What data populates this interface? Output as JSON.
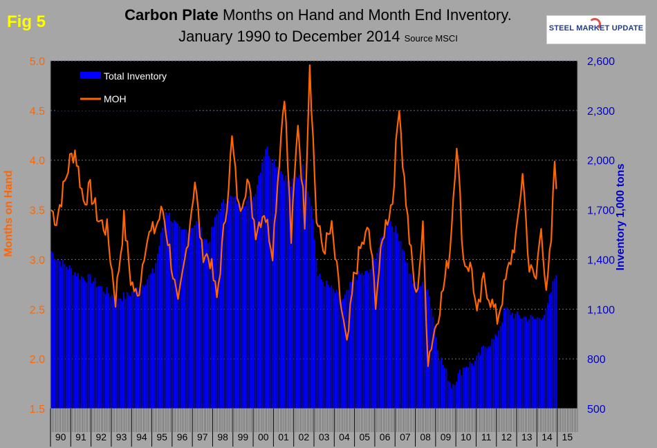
{
  "figure": {
    "label": "Fig 5",
    "title_bold": "Carbon Plate",
    "title_rest": " Months on Hand and Month End Inventory.",
    "title_line2": "January 1990 to December 2014",
    "source": "Source MSCI",
    "logo_text": "STEEL MARKET UPDATE"
  },
  "colors": {
    "inventory": "#0000ff",
    "moh": "#ff6600",
    "plot_bg": "#000000",
    "grid": "#6f6f9f"
  },
  "chart_data": {
    "type": "bar+line",
    "title": "Carbon Plate Months on Hand and Month End Inventory. January 1990 to December 2014",
    "ylabel_left": "Months on Hand",
    "ylabel_right": "Inventory 1,000 tons",
    "ylim_left": [
      1.5,
      5.0
    ],
    "ylim_right": [
      500,
      2600
    ],
    "yticks_left": [
      "1.5",
      "2.0",
      "2.5",
      "3.0",
      "3.5",
      "4.0",
      "4.5",
      "5.0"
    ],
    "yticks_right": [
      "500",
      "800",
      "1,100",
      "1,400",
      "1,700",
      "2,000",
      "2,300",
      "2,600"
    ],
    "x_labels": [
      "90",
      "91",
      "92",
      "93",
      "94",
      "95",
      "96",
      "97",
      "98",
      "99",
      "00",
      "01",
      "02",
      "03",
      "04",
      "05",
      "06",
      "07",
      "08",
      "09",
      "10",
      "11",
      "12",
      "13",
      "14",
      "15"
    ],
    "legend": [
      "Total Inventory",
      "MOH"
    ],
    "inventory_anchor_values": [
      {
        "year": 1990,
        "month": 1,
        "value": 1450
      },
      {
        "year": 1990,
        "month": 6,
        "value": 1390
      },
      {
        "year": 1991,
        "month": 1,
        "value": 1340
      },
      {
        "year": 1991,
        "month": 6,
        "value": 1300
      },
      {
        "year": 1992,
        "month": 1,
        "value": 1280
      },
      {
        "year": 1992,
        "month": 8,
        "value": 1220
      },
      {
        "year": 1993,
        "month": 3,
        "value": 1170
      },
      {
        "year": 1993,
        "month": 10,
        "value": 1180
      },
      {
        "year": 1994,
        "month": 6,
        "value": 1240
      },
      {
        "year": 1995,
        "month": 2,
        "value": 1330
      },
      {
        "year": 1995,
        "month": 9,
        "value": 1700
      },
      {
        "year": 1996,
        "month": 6,
        "value": 1560
      },
      {
        "year": 1997,
        "month": 3,
        "value": 1620
      },
      {
        "year": 1997,
        "month": 10,
        "value": 1500
      },
      {
        "year": 1998,
        "month": 4,
        "value": 1700
      },
      {
        "year": 1998,
        "month": 10,
        "value": 1780
      },
      {
        "year": 1999,
        "month": 6,
        "value": 1740
      },
      {
        "year": 2000,
        "month": 1,
        "value": 1780
      },
      {
        "year": 2000,
        "month": 8,
        "value": 2080
      },
      {
        "year": 2001,
        "month": 4,
        "value": 1950
      },
      {
        "year": 2001,
        "month": 11,
        "value": 1850
      },
      {
        "year": 2002,
        "month": 6,
        "value": 1950
      },
      {
        "year": 2002,
        "month": 11,
        "value": 1750
      },
      {
        "year": 2003,
        "month": 3,
        "value": 1300
      },
      {
        "year": 2003,
        "month": 10,
        "value": 1230
      },
      {
        "year": 2004,
        "month": 6,
        "value": 1150
      },
      {
        "year": 2005,
        "month": 1,
        "value": 1300
      },
      {
        "year": 2005,
        "month": 9,
        "value": 1320
      },
      {
        "year": 2006,
        "month": 4,
        "value": 1500
      },
      {
        "year": 2006,
        "month": 9,
        "value": 1650
      },
      {
        "year": 2007,
        "month": 4,
        "value": 1520
      },
      {
        "year": 2007,
        "month": 11,
        "value": 1250
      },
      {
        "year": 2008,
        "month": 8,
        "value": 1240
      },
      {
        "year": 2009,
        "month": 3,
        "value": 820
      },
      {
        "year": 2009,
        "month": 10,
        "value": 640
      },
      {
        "year": 2010,
        "month": 6,
        "value": 760
      },
      {
        "year": 2010,
        "month": 12,
        "value": 780
      },
      {
        "year": 2011,
        "month": 6,
        "value": 880
      },
      {
        "year": 2011,
        "month": 12,
        "value": 920
      },
      {
        "year": 2012,
        "month": 6,
        "value": 1100
      },
      {
        "year": 2012,
        "month": 12,
        "value": 1060
      },
      {
        "year": 2013,
        "month": 6,
        "value": 1050
      },
      {
        "year": 2013,
        "month": 12,
        "value": 1040
      },
      {
        "year": 2014,
        "month": 6,
        "value": 1080
      },
      {
        "year": 2014,
        "month": 12,
        "value": 1330
      }
    ],
    "moh_anchor_values": [
      {
        "year": 1990,
        "month": 1,
        "value": 3.5
      },
      {
        "year": 1990,
        "month": 4,
        "value": 3.4
      },
      {
        "year": 1990,
        "month": 8,
        "value": 3.7
      },
      {
        "year": 1990,
        "month": 12,
        "value": 4.0
      },
      {
        "year": 1991,
        "month": 3,
        "value": 4.1
      },
      {
        "year": 1991,
        "month": 8,
        "value": 3.6
      },
      {
        "year": 1991,
        "month": 12,
        "value": 3.7
      },
      {
        "year": 1992,
        "month": 5,
        "value": 3.4
      },
      {
        "year": 1992,
        "month": 10,
        "value": 3.3
      },
      {
        "year": 1993,
        "month": 3,
        "value": 2.6
      },
      {
        "year": 1993,
        "month": 8,
        "value": 3.4
      },
      {
        "year": 1993,
        "month": 12,
        "value": 2.8
      },
      {
        "year": 1994,
        "month": 4,
        "value": 2.6
      },
      {
        "year": 1994,
        "month": 9,
        "value": 3.2
      },
      {
        "year": 1995,
        "month": 2,
        "value": 3.3
      },
      {
        "year": 1995,
        "month": 7,
        "value": 3.5
      },
      {
        "year": 1995,
        "month": 11,
        "value": 3.1
      },
      {
        "year": 1996,
        "month": 4,
        "value": 2.5
      },
      {
        "year": 1996,
        "month": 9,
        "value": 3.1
      },
      {
        "year": 1997,
        "month": 2,
        "value": 3.8
      },
      {
        "year": 1997,
        "month": 6,
        "value": 3.1
      },
      {
        "year": 1997,
        "month": 11,
        "value": 3.0
      },
      {
        "year": 1998,
        "month": 3,
        "value": 2.6
      },
      {
        "year": 1998,
        "month": 9,
        "value": 3.6
      },
      {
        "year": 1998,
        "month": 12,
        "value": 4.2
      },
      {
        "year": 1999,
        "month": 4,
        "value": 3.5
      },
      {
        "year": 1999,
        "month": 9,
        "value": 3.8
      },
      {
        "year": 2000,
        "month": 2,
        "value": 3.3
      },
      {
        "year": 2000,
        "month": 7,
        "value": 3.5
      },
      {
        "year": 2000,
        "month": 12,
        "value": 3.1
      },
      {
        "year": 2001,
        "month": 3,
        "value": 3.8
      },
      {
        "year": 2001,
        "month": 7,
        "value": 4.7
      },
      {
        "year": 2001,
        "month": 11,
        "value": 3.2
      },
      {
        "year": 2002,
        "month": 3,
        "value": 4.4
      },
      {
        "year": 2002,
        "month": 7,
        "value": 3.4
      },
      {
        "year": 2002,
        "month": 10,
        "value": 5.0
      },
      {
        "year": 2003,
        "month": 2,
        "value": 3.4
      },
      {
        "year": 2003,
        "month": 6,
        "value": 3.1
      },
      {
        "year": 2003,
        "month": 11,
        "value": 3.3
      },
      {
        "year": 2004,
        "month": 4,
        "value": 2.6
      },
      {
        "year": 2004,
        "month": 8,
        "value": 2.1
      },
      {
        "year": 2004,
        "month": 12,
        "value": 2.8
      },
      {
        "year": 2005,
        "month": 4,
        "value": 3.1
      },
      {
        "year": 2005,
        "month": 9,
        "value": 3.3
      },
      {
        "year": 2006,
        "month": 1,
        "value": 2.6
      },
      {
        "year": 2006,
        "month": 6,
        "value": 3.3
      },
      {
        "year": 2006,
        "month": 11,
        "value": 3.6
      },
      {
        "year": 2007,
        "month": 3,
        "value": 4.6
      },
      {
        "year": 2007,
        "month": 5,
        "value": 4.0
      },
      {
        "year": 2007,
        "month": 9,
        "value": 3.2
      },
      {
        "year": 2008,
        "month": 1,
        "value": 2.6
      },
      {
        "year": 2008,
        "month": 5,
        "value": 3.3
      },
      {
        "year": 2008,
        "month": 8,
        "value": 2.0
      },
      {
        "year": 2008,
        "month": 12,
        "value": 2.3
      },
      {
        "year": 2009,
        "month": 5,
        "value": 2.7
      },
      {
        "year": 2009,
        "month": 9,
        "value": 3.1
      },
      {
        "year": 2010,
        "month": 1,
        "value": 4.2
      },
      {
        "year": 2010,
        "month": 5,
        "value": 3.0
      },
      {
        "year": 2010,
        "month": 10,
        "value": 2.9
      },
      {
        "year": 2011,
        "month": 1,
        "value": 2.4
      },
      {
        "year": 2011,
        "month": 5,
        "value": 2.8
      },
      {
        "year": 2011,
        "month": 9,
        "value": 2.6
      },
      {
        "year": 2012,
        "month": 1,
        "value": 2.4
      },
      {
        "year": 2012,
        "month": 5,
        "value": 2.7
      },
      {
        "year": 2012,
        "month": 9,
        "value": 3.0
      },
      {
        "year": 2013,
        "month": 1,
        "value": 3.3
      },
      {
        "year": 2013,
        "month": 4,
        "value": 3.9
      },
      {
        "year": 2013,
        "month": 8,
        "value": 2.9
      },
      {
        "year": 2013,
        "month": 12,
        "value": 2.8
      },
      {
        "year": 2014,
        "month": 3,
        "value": 3.4
      },
      {
        "year": 2014,
        "month": 6,
        "value": 2.6
      },
      {
        "year": 2014,
        "month": 9,
        "value": 3.2
      },
      {
        "year": 2014,
        "month": 11,
        "value": 4.0
      },
      {
        "year": 2014,
        "month": 12,
        "value": 3.8
      }
    ]
  }
}
